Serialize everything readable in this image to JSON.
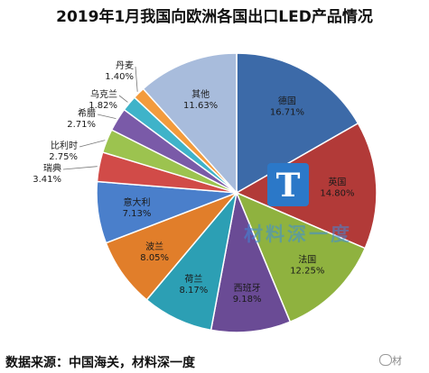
{
  "chart_data": {
    "type": "pie",
    "title": "2019年1月我国向欧洲各国出口LED产品情况",
    "slices": [
      {
        "label": "德国",
        "pct_label": "16.71%",
        "value": 16.71,
        "color": "#3c6aa8"
      },
      {
        "label": "英国",
        "pct_label": "14.80%",
        "value": 14.8,
        "color": "#b23a38"
      },
      {
        "label": "法国",
        "pct_label": "12.25%",
        "value": 12.25,
        "color": "#8fb23f"
      },
      {
        "label": "西班牙",
        "pct_label": "9.18%",
        "value": 9.18,
        "color": "#6a4b95"
      },
      {
        "label": "荷兰",
        "pct_label": "8.17%",
        "value": 8.17,
        "color": "#2c9fb4"
      },
      {
        "label": "波兰",
        "pct_label": "8.05%",
        "value": 8.05,
        "color": "#e17e2a"
      },
      {
        "label": "意大利",
        "pct_label": "7.13%",
        "value": 7.13,
        "color": "#4a7fcb"
      },
      {
        "label": "瑞典",
        "pct_label": "3.41%",
        "value": 3.41,
        "color": "#d14b48"
      },
      {
        "label": "比利时",
        "pct_label": "2.75%",
        "value": 2.75,
        "color": "#9cc34f"
      },
      {
        "label": "希腊",
        "pct_label": "2.71%",
        "value": 2.71,
        "color": "#7a5aa8"
      },
      {
        "label": "乌克兰",
        "pct_label": "1.82%",
        "value": 1.82,
        "color": "#3fb3c9"
      },
      {
        "label": "丹麦",
        "pct_label": "1.40%",
        "value": 1.4,
        "color": "#f39b3c"
      },
      {
        "label": "其他",
        "pct_label": "11.63%",
        "value": 11.63,
        "color": "#a8bcdc"
      }
    ]
  },
  "source": "数据来源：中国海关，材料深一度",
  "watermark": "材料深一度",
  "wechat_tag": "材"
}
